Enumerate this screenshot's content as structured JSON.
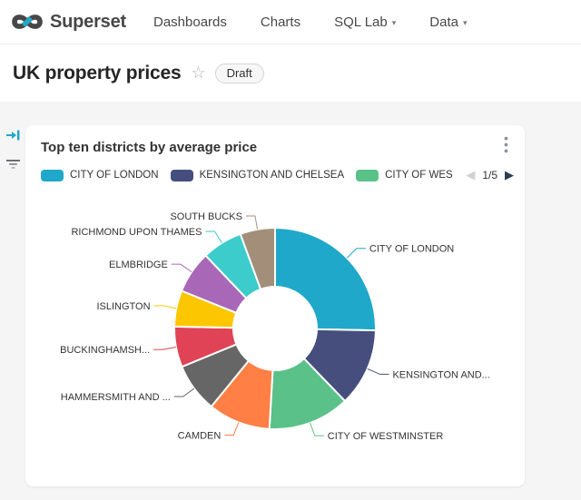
{
  "header": {
    "brand": "Superset",
    "nav": [
      {
        "label": "Dashboards",
        "caret": false
      },
      {
        "label": "Charts",
        "caret": false
      },
      {
        "label": "SQL Lab",
        "caret": true
      },
      {
        "label": "Data",
        "caret": true
      }
    ]
  },
  "dashboard": {
    "title": "UK property prices",
    "status_badge": "Draft"
  },
  "chart_card": {
    "title": "Top ten districts by average price",
    "legend": {
      "visible_items": [
        "CITY OF LONDON",
        "KENSINGTON AND CHELSEA",
        "CITY OF WES"
      ],
      "page_info": "1/5"
    }
  },
  "icons": {
    "star": "☆",
    "caret_down": "▾",
    "page_prev": "◀",
    "page_next": "▶"
  },
  "colors": {
    "accent": "#20A7C9",
    "background": "#f5f5f5"
  },
  "chart_data": {
    "type": "pie",
    "title": "Top ten districts by average price",
    "donut": true,
    "legend_position": "top",
    "values_shown": "labels only (percent estimated from arc angles)",
    "slices": [
      {
        "label": "CITY OF LONDON",
        "percent": 25.3,
        "color": "#1FA8C9"
      },
      {
        "label": "KENSINGTON AND...",
        "percent": 12.5,
        "color": "#454E7C"
      },
      {
        "label": "CITY OF WESTMINSTER",
        "percent": 13.1,
        "color": "#5AC189"
      },
      {
        "label": "CAMDEN",
        "percent": 10.0,
        "color": "#FF7F44"
      },
      {
        "label": "HAMMERSMITH AND ...",
        "percent": 7.9,
        "color": "#666666"
      },
      {
        "label": "BUCKINGHAMSH...",
        "percent": 6.5,
        "color": "#E04355"
      },
      {
        "label": "ISLINGTON",
        "percent": 5.8,
        "color": "#FCC700"
      },
      {
        "label": "ELMBRIDGE",
        "percent": 6.8,
        "color": "#A868B7"
      },
      {
        "label": "RICHMOND UPON THAMES",
        "percent": 6.5,
        "color": "#3CCCCB"
      },
      {
        "label": "SOUTH BUCKS",
        "percent": 5.6,
        "color": "#A38F79"
      }
    ]
  }
}
